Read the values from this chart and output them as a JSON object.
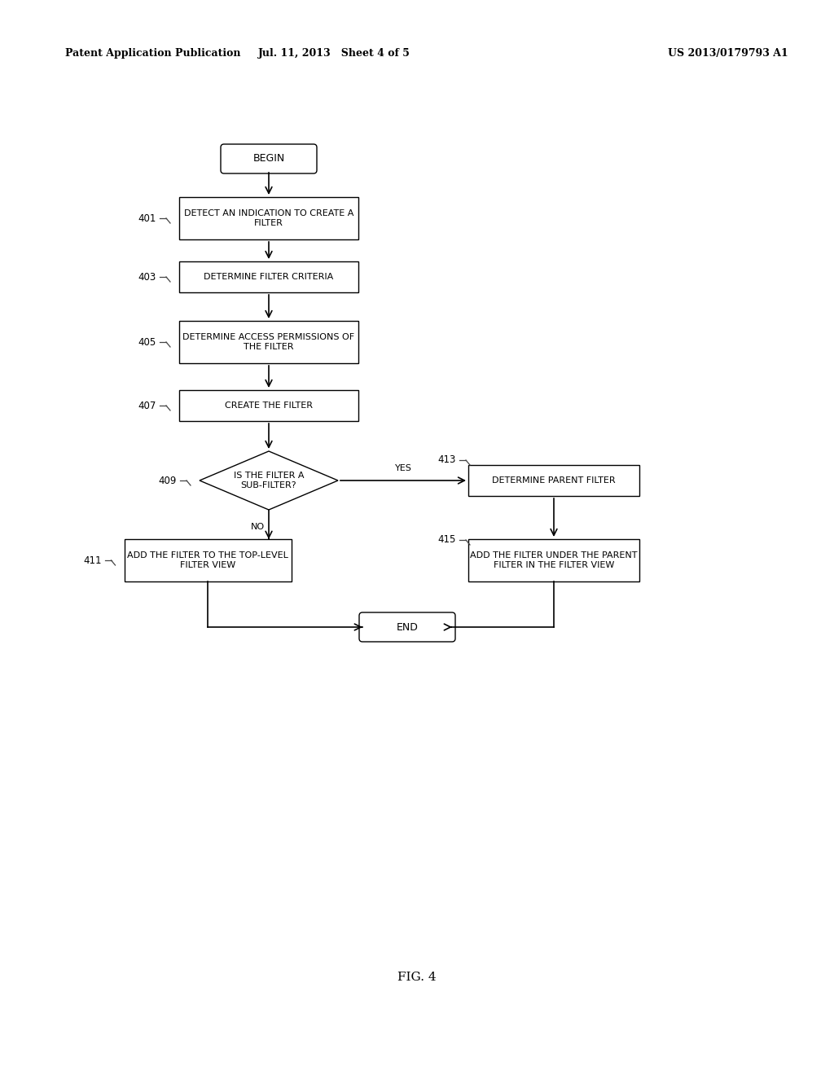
{
  "header_left": "Patent Application Publication",
  "header_center": "Jul. 11, 2013   Sheet 4 of 5",
  "header_right": "US 2013/0179793 A1",
  "fig_label": "FIG. 4",
  "background_color": "#ffffff",
  "nodes": {
    "begin": {
      "label": "BEGIN",
      "shape": "rounded_rect"
    },
    "n401": {
      "label": "DETECT AN INDICATION TO CREATE A\nFILTER",
      "shape": "rect"
    },
    "n403": {
      "label": "DETERMINE FILTER CRITERIA",
      "shape": "rect"
    },
    "n405": {
      "label": "DETERMINE ACCESS PERMISSIONS OF\nTHE FILTER",
      "shape": "rect"
    },
    "n407": {
      "label": "CREATE THE FILTER",
      "shape": "rect"
    },
    "n409": {
      "label": "IS THE FILTER A\nSUB-FILTER?",
      "shape": "diamond"
    },
    "n413": {
      "label": "DETERMINE PARENT FILTER",
      "shape": "rect"
    },
    "n411": {
      "label": "ADD THE FILTER TO THE TOP-LEVEL\nFILTER VIEW",
      "shape": "rect"
    },
    "n415": {
      "label": "ADD THE FILTER UNDER THE PARENT\nFILTER IN THE FILTER VIEW",
      "shape": "rect"
    },
    "end": {
      "label": "END",
      "shape": "rounded_rect"
    }
  }
}
